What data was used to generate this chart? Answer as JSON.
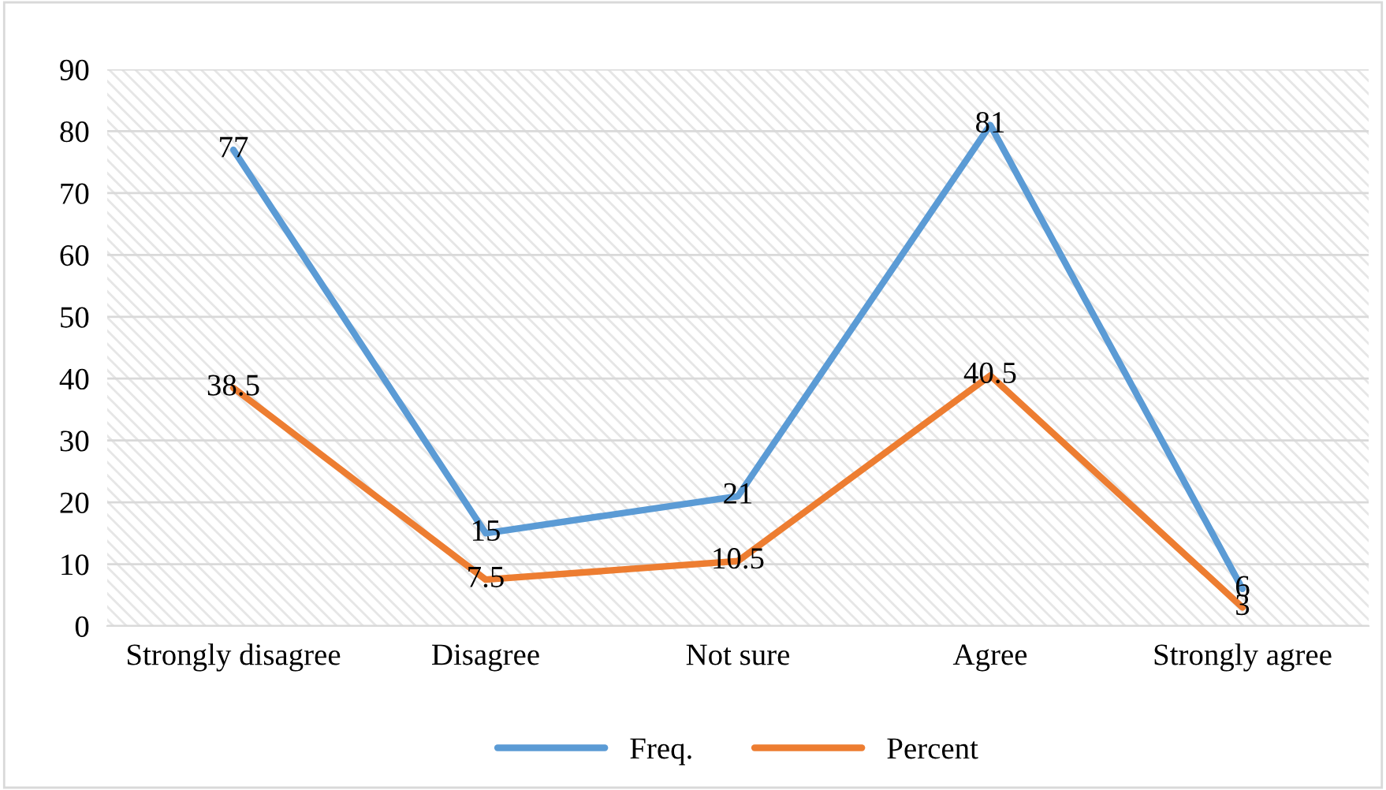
{
  "chart_data": {
    "type": "line",
    "categories": [
      "Strongly disagree",
      "Disagree",
      "Not sure",
      "Agree",
      "Strongly agree"
    ],
    "series": [
      {
        "name": "Freq.",
        "color": "#5b9bd5",
        "values": [
          77,
          15,
          21,
          81,
          6
        ]
      },
      {
        "name": "Percent",
        "color": "#ed7d31",
        "values": [
          38.5,
          7.5,
          10.5,
          40.5,
          3
        ]
      }
    ],
    "ylim": [
      0,
      90
    ],
    "yticks": [
      0,
      10,
      20,
      30,
      40,
      50,
      60,
      70,
      80,
      90
    ],
    "grid": "y",
    "legend": "bottom",
    "data_labels": true,
    "marker": "none",
    "line_style": "solid"
  }
}
